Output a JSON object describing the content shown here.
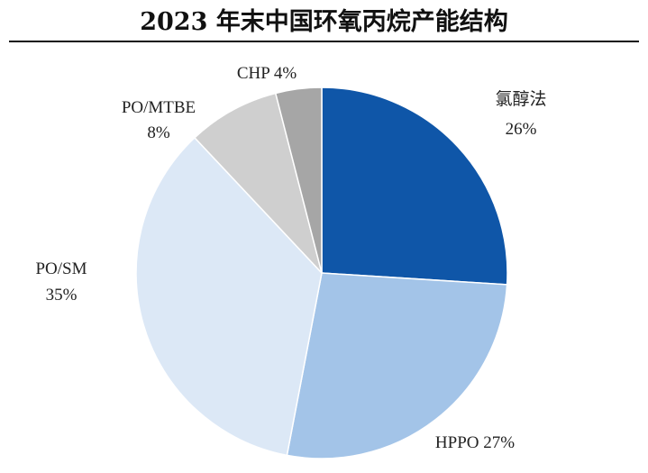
{
  "chart_data": {
    "type": "pie",
    "title": "2023 年末中国环氧丙烷产能结构",
    "slices": [
      {
        "name": "氯醇法",
        "value": 26,
        "value_label": "26%",
        "color": "#0f56a8"
      },
      {
        "name": "HPPO",
        "value": 27,
        "value_label": "27%",
        "color": "#a3c4e8"
      },
      {
        "name": "PO/SM",
        "value": 35,
        "value_label": "35%",
        "color": "#dce8f6"
      },
      {
        "name": "PO/MTBE",
        "value": 8,
        "value_label": "8%",
        "color": "#cfcfcf"
      },
      {
        "name": "CHP",
        "value": 4,
        "value_label": "4%",
        "color": "#a6a6a6"
      }
    ]
  }
}
